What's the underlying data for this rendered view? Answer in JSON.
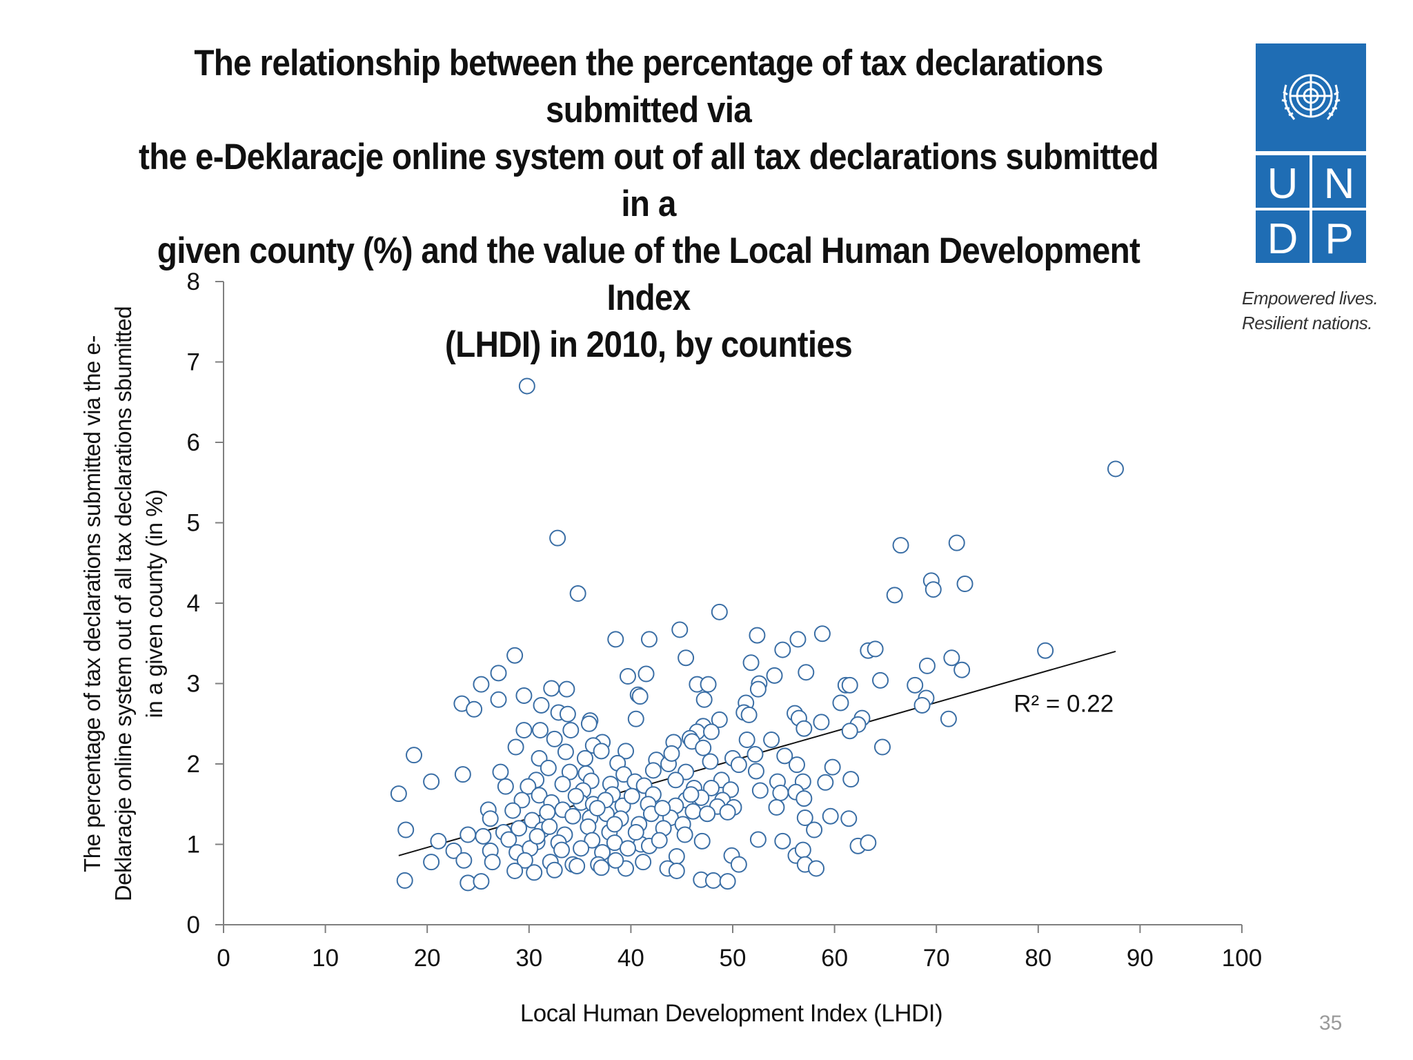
{
  "title_lines": [
    "The relationship between the percentage of tax declarations submitted via",
    "the e-Deklaracje online system out of all tax declarations submitted in a",
    "given county (%) and the value of the Local Human Development Index",
    "(LHDI) in 2010, by counties"
  ],
  "logo": {
    "letters": [
      "U",
      "N",
      "D",
      "P"
    ],
    "tagline": [
      "Empowered lives.",
      "Resilient nations."
    ],
    "color": "#1f6db4"
  },
  "page_number": "35",
  "chart_data": {
    "type": "scatter",
    "title": "",
    "xlabel": "Local Human Development Index (LHDI)",
    "ylabel_lines": [
      "The percentage of tax declarations submitted via the e-",
      "Deklaracje online system out of all tax declarations sbumitted",
      "in a given county (in %)"
    ],
    "xlim": [
      0,
      100
    ],
    "ylim": [
      0,
      8
    ],
    "xticks": [
      "0",
      "10",
      "20",
      "30",
      "40",
      "50",
      "60",
      "70",
      "80",
      "90",
      "100"
    ],
    "yticks": [
      "0",
      "1",
      "2",
      "3",
      "4",
      "5",
      "6",
      "7",
      "8"
    ],
    "grid": false,
    "marker_color": "#3a6ea5",
    "trendline": {
      "x": [
        17.2,
        87.6
      ],
      "y": [
        0.86,
        3.4
      ],
      "color": "#111111"
    },
    "r2_label": "R² = 0.22",
    "r2_position": [
      82.5,
      2.65
    ],
    "points": [
      [
        29.8,
        6.7
      ],
      [
        87.6,
        5.67
      ],
      [
        32.8,
        4.81
      ],
      [
        34.8,
        4.12
      ],
      [
        72.0,
        4.75
      ],
      [
        66.5,
        4.72
      ],
      [
        69.5,
        4.28
      ],
      [
        72.8,
        4.24
      ],
      [
        69.7,
        4.17
      ],
      [
        65.9,
        4.1
      ],
      [
        48.7,
        3.89
      ],
      [
        44.8,
        3.67
      ],
      [
        52.4,
        3.6
      ],
      [
        56.4,
        3.55
      ],
      [
        58.8,
        3.62
      ],
      [
        38.5,
        3.55
      ],
      [
        41.8,
        3.55
      ],
      [
        54.9,
        3.42
      ],
      [
        63.3,
        3.41
      ],
      [
        64.0,
        3.43
      ],
      [
        80.7,
        3.41
      ],
      [
        71.5,
        3.32
      ],
      [
        45.4,
        3.32
      ],
      [
        51.8,
        3.26
      ],
      [
        28.6,
        3.35
      ],
      [
        69.1,
        3.22
      ],
      [
        72.5,
        3.17
      ],
      [
        57.2,
        3.14
      ],
      [
        41.5,
        3.12
      ],
      [
        39.7,
        3.09
      ],
      [
        54.1,
        3.1
      ],
      [
        27.0,
        3.13
      ],
      [
        25.3,
        2.99
      ],
      [
        61.1,
        2.98
      ],
      [
        61.5,
        2.98
      ],
      [
        64.5,
        3.04
      ],
      [
        52.6,
        3.0
      ],
      [
        46.5,
        2.99
      ],
      [
        47.6,
        2.99
      ],
      [
        67.9,
        2.98
      ],
      [
        32.2,
        2.94
      ],
      [
        33.7,
        2.93
      ],
      [
        52.5,
        2.93
      ],
      [
        40.7,
        2.86
      ],
      [
        29.5,
        2.85
      ],
      [
        40.9,
        2.84
      ],
      [
        69.0,
        2.82
      ],
      [
        27.0,
        2.8
      ],
      [
        47.2,
        2.8
      ],
      [
        51.3,
        2.76
      ],
      [
        60.6,
        2.76
      ],
      [
        68.6,
        2.73
      ],
      [
        31.2,
        2.73
      ],
      [
        23.4,
        2.75
      ],
      [
        24.6,
        2.68
      ],
      [
        32.9,
        2.64
      ],
      [
        33.8,
        2.62
      ],
      [
        51.1,
        2.64
      ],
      [
        51.6,
        2.61
      ],
      [
        56.1,
        2.63
      ],
      [
        56.5,
        2.57
      ],
      [
        40.5,
        2.56
      ],
      [
        36.0,
        2.54
      ],
      [
        48.7,
        2.55
      ],
      [
        62.7,
        2.57
      ],
      [
        71.2,
        2.56
      ],
      [
        35.9,
        2.5
      ],
      [
        58.7,
        2.52
      ],
      [
        47.1,
        2.47
      ],
      [
        57.0,
        2.44
      ],
      [
        62.3,
        2.49
      ],
      [
        46.5,
        2.4
      ],
      [
        47.9,
        2.4
      ],
      [
        29.5,
        2.42
      ],
      [
        31.1,
        2.42
      ],
      [
        34.1,
        2.42
      ],
      [
        61.5,
        2.41
      ],
      [
        45.8,
        2.32
      ],
      [
        53.8,
        2.3
      ],
      [
        51.4,
        2.3
      ],
      [
        46.0,
        2.28
      ],
      [
        44.2,
        2.27
      ],
      [
        37.2,
        2.27
      ],
      [
        32.5,
        2.31
      ],
      [
        28.7,
        2.21
      ],
      [
        36.3,
        2.23
      ],
      [
        47.1,
        2.2
      ],
      [
        64.7,
        2.21
      ],
      [
        33.6,
        2.15
      ],
      [
        37.1,
        2.16
      ],
      [
        39.5,
        2.16
      ],
      [
        52.2,
        2.12
      ],
      [
        55.1,
        2.1
      ],
      [
        18.7,
        2.11
      ],
      [
        31.0,
        2.07
      ],
      [
        35.5,
        2.07
      ],
      [
        38.7,
        2.01
      ],
      [
        42.5,
        2.05
      ],
      [
        43.7,
        2.0
      ],
      [
        44.0,
        2.13
      ],
      [
        47.8,
        2.03
      ],
      [
        50.0,
        2.07
      ],
      [
        50.6,
        1.99
      ],
      [
        56.3,
        1.99
      ],
      [
        59.8,
        1.96
      ],
      [
        27.2,
        1.9
      ],
      [
        23.5,
        1.87
      ],
      [
        31.9,
        1.95
      ],
      [
        34.0,
        1.9
      ],
      [
        35.6,
        1.88
      ],
      [
        39.3,
        1.87
      ],
      [
        42.2,
        1.92
      ],
      [
        45.4,
        1.9
      ],
      [
        48.9,
        1.8
      ],
      [
        52.3,
        1.91
      ],
      [
        36.1,
        1.79
      ],
      [
        20.4,
        1.78
      ],
      [
        40.4,
        1.78
      ],
      [
        44.4,
        1.8
      ],
      [
        54.4,
        1.78
      ],
      [
        56.9,
        1.78
      ],
      [
        59.1,
        1.77
      ],
      [
        61.6,
        1.81
      ],
      [
        30.7,
        1.8
      ],
      [
        33.3,
        1.75
      ],
      [
        38.0,
        1.75
      ],
      [
        41.3,
        1.73
      ],
      [
        46.2,
        1.7
      ],
      [
        47.9,
        1.7
      ],
      [
        49.8,
        1.68
      ],
      [
        52.7,
        1.67
      ],
      [
        27.7,
        1.72
      ],
      [
        29.9,
        1.72
      ],
      [
        35.3,
        1.67
      ],
      [
        56.2,
        1.65
      ],
      [
        54.7,
        1.64
      ],
      [
        17.2,
        1.63
      ],
      [
        31.0,
        1.61
      ],
      [
        38.2,
        1.62
      ],
      [
        42.2,
        1.62
      ],
      [
        45.4,
        1.55
      ],
      [
        46.9,
        1.58
      ],
      [
        49.0,
        1.55
      ],
      [
        57.0,
        1.57
      ],
      [
        29.3,
        1.55
      ],
      [
        32.2,
        1.52
      ],
      [
        35.1,
        1.52
      ],
      [
        36.3,
        1.5
      ],
      [
        39.2,
        1.48
      ],
      [
        41.7,
        1.5
      ],
      [
        44.4,
        1.48
      ],
      [
        48.5,
        1.47
      ],
      [
        50.1,
        1.46
      ],
      [
        54.3,
        1.46
      ],
      [
        26.0,
        1.43
      ],
      [
        28.4,
        1.42
      ],
      [
        33.3,
        1.43
      ],
      [
        37.6,
        1.38
      ],
      [
        42.0,
        1.38
      ],
      [
        46.1,
        1.41
      ],
      [
        49.5,
        1.4
      ],
      [
        59.6,
        1.35
      ],
      [
        61.4,
        1.32
      ],
      [
        57.1,
        1.33
      ],
      [
        30.3,
        1.3
      ],
      [
        34.3,
        1.35
      ],
      [
        36.0,
        1.33
      ],
      [
        39.0,
        1.32
      ],
      [
        43.9,
        1.33
      ],
      [
        26.2,
        1.32
      ],
      [
        45.1,
        1.25
      ],
      [
        47.5,
        1.38
      ],
      [
        17.9,
        1.18
      ],
      [
        24.0,
        1.12
      ],
      [
        25.5,
        1.1
      ],
      [
        27.5,
        1.15
      ],
      [
        29.0,
        1.2
      ],
      [
        31.3,
        1.18
      ],
      [
        33.5,
        1.12
      ],
      [
        35.8,
        1.22
      ],
      [
        37.9,
        1.15
      ],
      [
        40.8,
        1.25
      ],
      [
        43.2,
        1.2
      ],
      [
        45.3,
        1.12
      ],
      [
        47.0,
        1.04
      ],
      [
        21.1,
        1.04
      ],
      [
        28.0,
        1.06
      ],
      [
        30.8,
        1.03
      ],
      [
        32.9,
        1.02
      ],
      [
        36.2,
        1.05
      ],
      [
        38.4,
        1.02
      ],
      [
        41.0,
        1.0
      ],
      [
        52.5,
        1.06
      ],
      [
        54.9,
        1.04
      ],
      [
        58.0,
        1.18
      ],
      [
        62.3,
        0.98
      ],
      [
        63.3,
        1.02
      ],
      [
        22.6,
        0.92
      ],
      [
        26.2,
        0.92
      ],
      [
        28.8,
        0.9
      ],
      [
        30.1,
        0.95
      ],
      [
        33.2,
        0.93
      ],
      [
        35.1,
        0.95
      ],
      [
        37.2,
        0.9
      ],
      [
        39.7,
        0.95
      ],
      [
        41.8,
        0.98
      ],
      [
        44.5,
        0.85
      ],
      [
        23.6,
        0.8
      ],
      [
        26.4,
        0.78
      ],
      [
        29.6,
        0.8
      ],
      [
        32.1,
        0.78
      ],
      [
        34.3,
        0.75
      ],
      [
        36.8,
        0.75
      ],
      [
        39.5,
        0.7
      ],
      [
        41.2,
        0.78
      ],
      [
        43.6,
        0.7
      ],
      [
        49.9,
        0.86
      ],
      [
        50.6,
        0.75
      ],
      [
        56.2,
        0.86
      ],
      [
        56.9,
        0.93
      ],
      [
        57.1,
        0.75
      ],
      [
        58.2,
        0.7
      ],
      [
        20.4,
        0.78
      ],
      [
        17.8,
        0.55
      ],
      [
        24.0,
        0.52
      ],
      [
        25.3,
        0.54
      ],
      [
        28.6,
        0.67
      ],
      [
        30.5,
        0.65
      ],
      [
        32.5,
        0.68
      ],
      [
        34.7,
        0.73
      ],
      [
        37.1,
        0.71
      ],
      [
        38.5,
        0.8
      ],
      [
        44.5,
        0.67
      ],
      [
        46.9,
        0.56
      ],
      [
        48.1,
        0.55
      ],
      [
        49.5,
        0.54
      ],
      [
        40.5,
        1.15
      ],
      [
        42.8,
        1.05
      ],
      [
        31.8,
        1.4
      ],
      [
        34.6,
        1.6
      ],
      [
        37.5,
        1.55
      ],
      [
        40.1,
        1.6
      ],
      [
        43.1,
        1.45
      ],
      [
        38.4,
        1.25
      ],
      [
        36.7,
        1.45
      ],
      [
        30.8,
        1.1
      ],
      [
        32.0,
        1.22
      ],
      [
        45.9,
        1.62
      ]
    ]
  }
}
